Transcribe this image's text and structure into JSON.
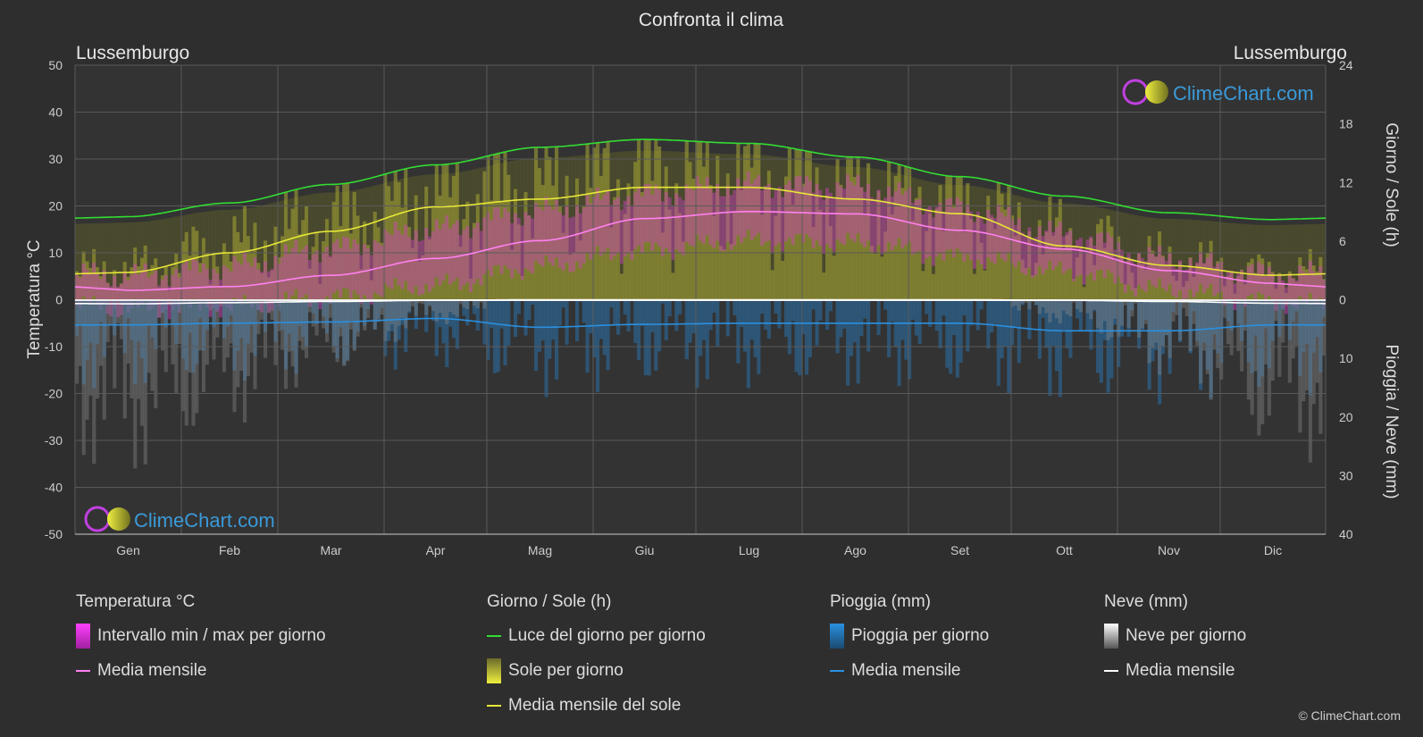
{
  "colors": {
    "background": "#2e2e2e",
    "grid": "#5a5a5a",
    "text": "#dddddd",
    "temp_range": "#e040c8",
    "temp_mean": "#ff80f0",
    "daylight": "#33dd33",
    "sun_bar": "#b9b93a",
    "sun_mean": "#e8e838",
    "rain_bar": "#2a6fa8",
    "rain_mean": "#2a90e0",
    "snow_bar": "#9a9a9a",
    "snow_mean": "#ffffff",
    "brand": "#3a9ad9"
  },
  "chart_data": {
    "type": "line",
    "title": "Confronta il clima",
    "location_left": "Lussemburgo",
    "location_right": "Lussemburgo",
    "categories": [
      "Gen",
      "Feb",
      "Mar",
      "Apr",
      "Mag",
      "Giu",
      "Lug",
      "Ago",
      "Set",
      "Ott",
      "Nov",
      "Dic"
    ],
    "y_left": {
      "label": "Temperatura °C",
      "range": [
        -50,
        50
      ],
      "ticks": [
        50,
        40,
        30,
        20,
        10,
        0,
        -10,
        -20,
        -30,
        -40,
        -50
      ]
    },
    "y_right_top": {
      "label": "Giorno / Sole (h)",
      "range": [
        0,
        24
      ],
      "ticks": [
        24,
        18,
        12,
        6,
        0
      ]
    },
    "y_right_bottom": {
      "label": "Pioggia / Neve (mm)",
      "range": [
        0,
        40
      ],
      "ticks": [
        10,
        20,
        30,
        40
      ]
    },
    "grid": true,
    "series": [
      {
        "name": "Luce del giorno per giorno",
        "unit": "h",
        "values": [
          8.5,
          9.9,
          11.8,
          13.8,
          15.6,
          16.4,
          16.0,
          14.6,
          12.6,
          10.6,
          8.9,
          8.2
        ]
      },
      {
        "name": "Media mensile del sole",
        "unit": "h",
        "values": [
          2.8,
          4.8,
          7.0,
          9.5,
          10.3,
          11.5,
          11.5,
          10.3,
          8.8,
          5.5,
          3.5,
          2.5
        ]
      },
      {
        "name": "Media mensile",
        "group": "Temperatura °C",
        "unit": "°C",
        "values": [
          2.0,
          2.8,
          5.2,
          8.8,
          12.6,
          17.3,
          18.8,
          18.3,
          14.8,
          10.8,
          6.2,
          3.5
        ]
      },
      {
        "name": "Media mensile",
        "group": "Pioggia (mm)",
        "unit": "mm",
        "values": [
          4.3,
          4.0,
          3.8,
          3.2,
          4.7,
          4.2,
          4.0,
          4.0,
          4.0,
          5.3,
          5.3,
          4.3
        ]
      },
      {
        "name": "Media mensile",
        "group": "Neve (mm)",
        "unit": "mm",
        "values": [
          0.7,
          0.5,
          0.3,
          0.1,
          0.0,
          0.0,
          0.0,
          0.0,
          0.0,
          0.1,
          0.3,
          0.6
        ]
      }
    ],
    "temp_range_daily_approx": {
      "min": [
        -2.0,
        -1.5,
        0.5,
        3.0,
        7.0,
        10.5,
        12.5,
        12.0,
        9.0,
        6.0,
        2.0,
        -0.5
      ],
      "max": [
        5.0,
        7.0,
        11.0,
        15.0,
        19.0,
        22.5,
        24.5,
        24.0,
        19.5,
        14.0,
        8.5,
        5.5
      ]
    },
    "rain_daily_approx": [
      6.0,
      5.5,
      5.0,
      4.5,
      6.5,
      6.0,
      6.0,
      6.0,
      6.0,
      7.0,
      7.0,
      6.5
    ]
  },
  "legend": {
    "temperature": {
      "title": "Temperatura °C",
      "items": [
        "Intervallo min / max per giorno",
        "Media mensile"
      ]
    },
    "sun": {
      "title": "Giorno / Sole (h)",
      "items": [
        "Luce del giorno per giorno",
        "Sole per giorno",
        "Media mensile del sole"
      ]
    },
    "rain": {
      "title": "Pioggia (mm)",
      "items": [
        "Pioggia per giorno",
        "Media mensile"
      ]
    },
    "snow": {
      "title": "Neve (mm)",
      "items": [
        "Neve per giorno",
        "Media mensile"
      ]
    }
  },
  "brand": {
    "name": "ClimeChart.com",
    "copyright": "© ClimeChart.com"
  }
}
